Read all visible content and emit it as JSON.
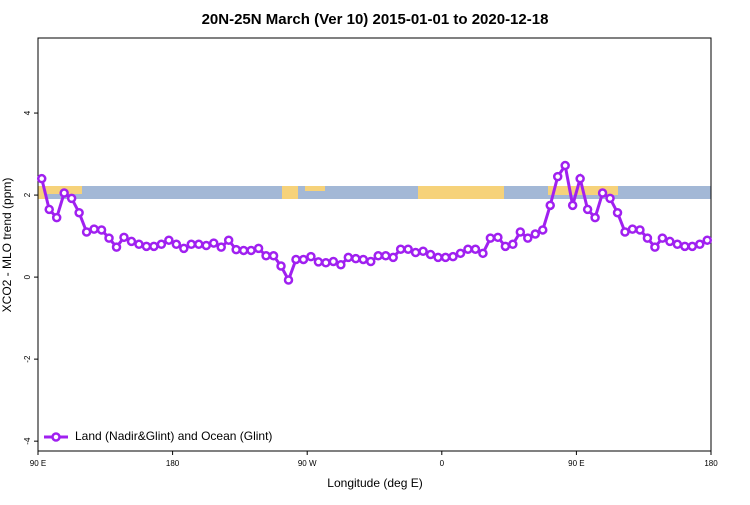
{
  "chart_data": {
    "type": "line",
    "title": "20N-25N March (Ver 10)   2015-01-01 to 2020-12-18",
    "x_label": "Longitude (deg E)",
    "y_label": "XCO2 - MLO trend (ppm)",
    "xlim": [
      90,
      540
    ],
    "ylim": [
      -4.24,
      5.83
    ],
    "xticks": [
      {
        "value": 90,
        "label": "90 E"
      },
      {
        "value": 180,
        "label": "180"
      },
      {
        "value": 270,
        "label": "90 W"
      },
      {
        "value": 360,
        "label": "0"
      },
      {
        "value": 450,
        "label": "90 E"
      },
      {
        "value": 540,
        "label": "180"
      }
    ],
    "yticks": [
      -4,
      -2,
      0,
      2,
      4
    ],
    "legend": "bottom-left",
    "x": [
      92.5,
      97.5,
      102.5,
      107.5,
      112.5,
      117.5,
      122.5,
      127.5,
      132.5,
      137.5,
      142.5,
      147.5,
      152.5,
      157.5,
      162.5,
      167.5,
      172.5,
      177.5,
      182.5,
      187.5,
      192.5,
      197.5,
      202.5,
      207.5,
      212.5,
      217.5,
      222.5,
      227.5,
      232.5,
      237.5,
      242.5,
      247.5,
      252.5,
      257.5,
      262.5,
      267.5,
      272.5,
      277.5,
      282.5,
      287.5,
      292.5,
      297.5,
      302.5,
      307.5,
      312.5,
      317.5,
      322.5,
      327.5,
      332.5,
      337.5,
      342.5,
      347.5,
      352.5,
      357.5,
      362.5,
      367.5,
      372.5,
      377.5,
      382.5,
      387.5,
      392.5,
      397.5,
      402.5,
      407.5,
      412.5,
      417.5,
      422.5,
      427.5,
      432.5,
      437.5,
      442.5,
      447.5,
      452.5,
      457.5,
      462.5,
      467.5,
      472.5,
      477.5,
      482.5,
      487.5,
      492.5,
      497.5,
      502.5,
      507.5,
      512.5,
      517.5,
      522.5,
      527.5,
      532.5,
      537.5
    ],
    "series": [
      {
        "name": "Land (Nadir&Glint) and Ocean (Glint)",
        "color": "#a020f0",
        "values": [
          2.4,
          1.65,
          1.45,
          2.05,
          1.92,
          1.57,
          1.1,
          1.17,
          1.15,
          0.95,
          0.73,
          0.97,
          0.87,
          0.8,
          0.75,
          0.75,
          0.8,
          0.9,
          0.8,
          0.7,
          0.8,
          0.8,
          0.77,
          0.83,
          0.73,
          0.9,
          0.67,
          0.65,
          0.65,
          0.7,
          0.52,
          0.52,
          0.27,
          -0.07,
          0.43,
          0.43,
          0.5,
          0.37,
          0.35,
          0.38,
          0.3,
          0.48,
          0.45,
          0.43,
          0.38,
          0.52,
          0.52,
          0.48,
          0.68,
          0.68,
          0.6,
          0.63,
          0.55,
          0.48,
          0.48,
          0.5,
          0.58,
          0.68,
          0.68,
          0.58,
          0.95,
          0.97,
          0.75,
          0.8,
          1.1,
          0.95,
          1.05,
          1.15,
          1.75,
          2.45,
          2.72,
          1.75,
          2.4,
          1.65,
          1.45,
          2.05,
          1.92,
          1.57,
          1.1,
          1.17,
          1.15,
          0.95,
          0.73,
          0.95,
          0.87,
          0.8,
          0.75,
          0.75,
          0.8,
          0.9
        ]
      }
    ]
  }
}
